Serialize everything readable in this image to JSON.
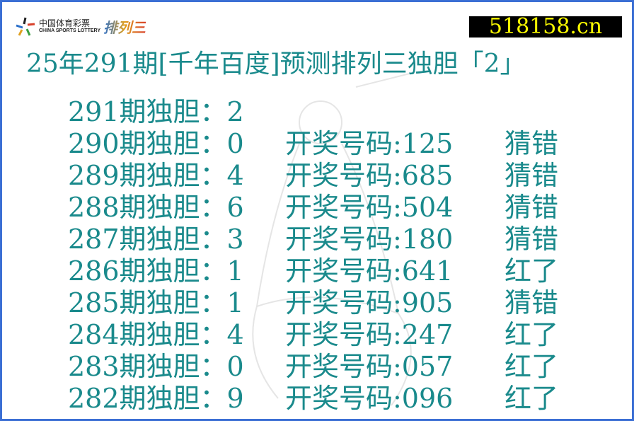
{
  "logo": {
    "cn": "中国体育彩票",
    "en": "CHINA SPORTS LOTTERY",
    "product": "排列三"
  },
  "site": "518158.cn",
  "title": "25年291期[千年百度]预测排列三独胆「2」",
  "rows": [
    {
      "issue": "291期独胆：2",
      "draw": "",
      "result": ""
    },
    {
      "issue": "290期独胆：0",
      "draw": "开奖号码:125",
      "result": "猜错"
    },
    {
      "issue": "289期独胆：4",
      "draw": "开奖号码:685",
      "result": "猜错"
    },
    {
      "issue": "288期独胆：6",
      "draw": "开奖号码:504",
      "result": "猜错"
    },
    {
      "issue": "287期独胆：3",
      "draw": "开奖号码:180",
      "result": "猜错"
    },
    {
      "issue": "286期独胆：1",
      "draw": "开奖号码:641",
      "result": "红了"
    },
    {
      "issue": "285期独胆：1",
      "draw": "开奖号码:905",
      "result": "猜错"
    },
    {
      "issue": "284期独胆：4",
      "draw": "开奖号码:247",
      "result": "红了"
    },
    {
      "issue": "283期独胆：0",
      "draw": "开奖号码:057",
      "result": "红了"
    },
    {
      "issue": "282期独胆：9",
      "draw": "开奖号码:096",
      "result": "红了"
    }
  ],
  "colors": {
    "text": "#1a8a8c",
    "border": "#3b6fd4",
    "site_bg": "#000000",
    "site_text": "#ffff00"
  }
}
